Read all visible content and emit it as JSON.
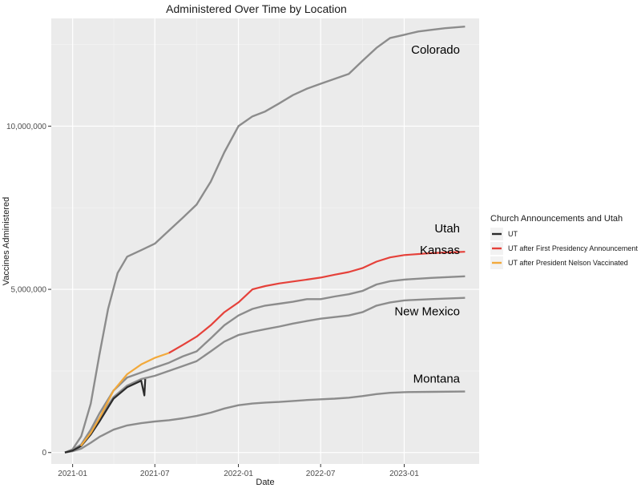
{
  "chart_data": {
    "type": "line",
    "title": "Administered Over Time by Location",
    "xlabel": "Date",
    "ylabel": "Vaccines Administered",
    "x_ticks": [
      "2021-01",
      "2021-07",
      "2022-01",
      "2022-07",
      "2023-01"
    ],
    "y_ticks": [
      "0",
      "5,000,000",
      "10,000,000"
    ],
    "ylim": [
      -350000,
      13300000
    ],
    "xlim": [
      "2020-11-15",
      "2023-06-15"
    ],
    "grid": true,
    "background": "#ebebeb",
    "states": [
      {
        "name": "Colorado",
        "color": "#8c8c8c",
        "points": [
          [
            "2020-12-15",
            0
          ],
          [
            "2021-01-01",
            100000
          ],
          [
            "2021-01-20",
            500000
          ],
          [
            "2021-02-10",
            1500000
          ],
          [
            "2021-03-01",
            3000000
          ],
          [
            "2021-03-20",
            4400000
          ],
          [
            "2021-04-10",
            5500000
          ],
          [
            "2021-05-01",
            6000000
          ],
          [
            "2021-06-01",
            6200000
          ],
          [
            "2021-07-01",
            6400000
          ],
          [
            "2021-08-01",
            6800000
          ],
          [
            "2021-09-01",
            7200000
          ],
          [
            "2021-10-01",
            7600000
          ],
          [
            "2021-11-01",
            8300000
          ],
          [
            "2021-12-01",
            9200000
          ],
          [
            "2022-01-01",
            10000000
          ],
          [
            "2022-02-01",
            10300000
          ],
          [
            "2022-03-01",
            10450000
          ],
          [
            "2022-04-01",
            10700000
          ],
          [
            "2022-05-01",
            10950000
          ],
          [
            "2022-06-01",
            11150000
          ],
          [
            "2022-07-01",
            11300000
          ],
          [
            "2022-08-01",
            11450000
          ],
          [
            "2022-09-01",
            11600000
          ],
          [
            "2022-10-01",
            12000000
          ],
          [
            "2022-11-01",
            12400000
          ],
          [
            "2022-12-01",
            12700000
          ],
          [
            "2023-01-01",
            12800000
          ],
          [
            "2023-02-01",
            12900000
          ],
          [
            "2023-03-01",
            12950000
          ],
          [
            "2023-04-01",
            13000000
          ],
          [
            "2023-05-15",
            13050000
          ]
        ]
      },
      {
        "name": "Kansas",
        "color": "#8c8c8c",
        "points": [
          [
            "2020-12-15",
            0
          ],
          [
            "2021-01-01",
            80000
          ],
          [
            "2021-01-20",
            250000
          ],
          [
            "2021-02-10",
            700000
          ],
          [
            "2021-03-01",
            1200000
          ],
          [
            "2021-04-01",
            1900000
          ],
          [
            "2021-05-01",
            2300000
          ],
          [
            "2021-06-01",
            2450000
          ],
          [
            "2021-07-01",
            2600000
          ],
          [
            "2021-08-01",
            2750000
          ],
          [
            "2021-09-01",
            2950000
          ],
          [
            "2021-10-01",
            3100000
          ],
          [
            "2021-11-01",
            3500000
          ],
          [
            "2021-12-01",
            3900000
          ],
          [
            "2022-01-01",
            4200000
          ],
          [
            "2022-02-01",
            4400000
          ],
          [
            "2022-03-01",
            4500000
          ],
          [
            "2022-04-01",
            4560000
          ],
          [
            "2022-05-01",
            4620000
          ],
          [
            "2022-06-01",
            4700000
          ],
          [
            "2022-07-01",
            4700000
          ],
          [
            "2022-08-01",
            4780000
          ],
          [
            "2022-09-01",
            4850000
          ],
          [
            "2022-10-01",
            4950000
          ],
          [
            "2022-11-01",
            5150000
          ],
          [
            "2022-12-01",
            5250000
          ],
          [
            "2023-01-01",
            5300000
          ],
          [
            "2023-03-01",
            5350000
          ],
          [
            "2023-05-15",
            5400000
          ]
        ]
      },
      {
        "name": "New Mexico",
        "color": "#8c8c8c",
        "points": [
          [
            "2020-12-15",
            0
          ],
          [
            "2021-01-01",
            70000
          ],
          [
            "2021-01-20",
            220000
          ],
          [
            "2021-02-10",
            600000
          ],
          [
            "2021-03-01",
            1050000
          ],
          [
            "2021-04-01",
            1700000
          ],
          [
            "2021-05-01",
            2050000
          ],
          [
            "2021-06-01",
            2250000
          ],
          [
            "2021-07-01",
            2350000
          ],
          [
            "2021-08-01",
            2500000
          ],
          [
            "2021-09-01",
            2650000
          ],
          [
            "2021-10-01",
            2800000
          ],
          [
            "2021-11-01",
            3100000
          ],
          [
            "2021-12-01",
            3400000
          ],
          [
            "2022-01-01",
            3600000
          ],
          [
            "2022-02-01",
            3700000
          ],
          [
            "2022-03-01",
            3780000
          ],
          [
            "2022-04-01",
            3860000
          ],
          [
            "2022-05-01",
            3950000
          ],
          [
            "2022-06-01",
            4030000
          ],
          [
            "2022-07-01",
            4100000
          ],
          [
            "2022-08-01",
            4150000
          ],
          [
            "2022-09-01",
            4200000
          ],
          [
            "2022-10-01",
            4300000
          ],
          [
            "2022-11-01",
            4500000
          ],
          [
            "2022-12-01",
            4600000
          ],
          [
            "2023-01-01",
            4660000
          ],
          [
            "2023-03-01",
            4700000
          ],
          [
            "2023-05-15",
            4740000
          ]
        ]
      },
      {
        "name": "Montana",
        "color": "#8c8c8c",
        "points": [
          [
            "2020-12-15",
            0
          ],
          [
            "2021-01-01",
            40000
          ],
          [
            "2021-01-20",
            120000
          ],
          [
            "2021-02-10",
            300000
          ],
          [
            "2021-03-01",
            480000
          ],
          [
            "2021-04-01",
            700000
          ],
          [
            "2021-05-01",
            830000
          ],
          [
            "2021-06-01",
            900000
          ],
          [
            "2021-07-01",
            950000
          ],
          [
            "2021-08-01",
            990000
          ],
          [
            "2021-09-01",
            1050000
          ],
          [
            "2021-10-01",
            1120000
          ],
          [
            "2021-11-01",
            1220000
          ],
          [
            "2021-12-01",
            1350000
          ],
          [
            "2022-01-01",
            1450000
          ],
          [
            "2022-02-01",
            1500000
          ],
          [
            "2022-03-01",
            1530000
          ],
          [
            "2022-04-01",
            1550000
          ],
          [
            "2022-05-01",
            1580000
          ],
          [
            "2022-06-01",
            1610000
          ],
          [
            "2022-07-01",
            1630000
          ],
          [
            "2022-08-01",
            1650000
          ],
          [
            "2022-09-01",
            1680000
          ],
          [
            "2022-10-01",
            1730000
          ],
          [
            "2022-11-01",
            1790000
          ],
          [
            "2022-12-01",
            1830000
          ],
          [
            "2023-01-01",
            1850000
          ],
          [
            "2023-03-01",
            1860000
          ],
          [
            "2023-05-15",
            1870000
          ]
        ]
      }
    ],
    "utah": {
      "label": "Utah",
      "segments": [
        {
          "name": "UT",
          "color": "#2b2b2b",
          "points": [
            [
              "2020-12-15",
              0
            ],
            [
              "2021-01-01",
              60000
            ],
            [
              "2021-01-20",
              200000
            ],
            [
              "2021-02-10",
              550000
            ],
            [
              "2021-03-01",
              950000
            ],
            [
              "2021-04-01",
              1650000
            ],
            [
              "2021-05-01",
              2000000
            ],
            [
              "2021-06-01",
              2200000
            ],
            [
              "2021-06-08",
              1750000
            ],
            [
              "2021-06-10",
              2250000
            ]
          ]
        },
        {
          "name": "UT after President Nelson Vaccinated",
          "color": "#f2a93b",
          "points": [
            [
              "2021-01-19",
              200000
            ],
            [
              "2021-02-10",
              600000
            ],
            [
              "2021-03-01",
              1050000
            ],
            [
              "2021-04-01",
              1900000
            ],
            [
              "2021-05-01",
              2400000
            ],
            [
              "2021-06-01",
              2700000
            ],
            [
              "2021-07-01",
              2900000
            ],
            [
              "2021-08-01",
              3050000
            ]
          ]
        },
        {
          "name": "UT after First Presidency Announcement",
          "color": "#e5413a",
          "points": [
            [
              "2021-08-01",
              3050000
            ],
            [
              "2021-09-01",
              3300000
            ],
            [
              "2021-10-01",
              3550000
            ],
            [
              "2021-11-01",
              3900000
            ],
            [
              "2021-12-01",
              4300000
            ],
            [
              "2022-01-01",
              4600000
            ],
            [
              "2022-02-01",
              5000000
            ],
            [
              "2022-03-01",
              5100000
            ],
            [
              "2022-04-01",
              5180000
            ],
            [
              "2022-05-01",
              5240000
            ],
            [
              "2022-06-01",
              5300000
            ],
            [
              "2022-07-01",
              5360000
            ],
            [
              "2022-08-01",
              5450000
            ],
            [
              "2022-09-01",
              5530000
            ],
            [
              "2022-10-01",
              5650000
            ],
            [
              "2022-11-01",
              5850000
            ],
            [
              "2022-12-01",
              5980000
            ],
            [
              "2023-01-01",
              6050000
            ],
            [
              "2023-03-01",
              6110000
            ],
            [
              "2023-05-15",
              6150000
            ]
          ]
        }
      ]
    },
    "legend": {
      "title": "Church Announcements and Utah",
      "position": "right",
      "entries": [
        {
          "label": "UT",
          "color": "#2b2b2b"
        },
        {
          "label": "UT after First Presidency Announcement",
          "color": "#e5413a"
        },
        {
          "label": "UT after President Nelson Vaccinated",
          "color": "#f2a93b"
        }
      ]
    }
  }
}
